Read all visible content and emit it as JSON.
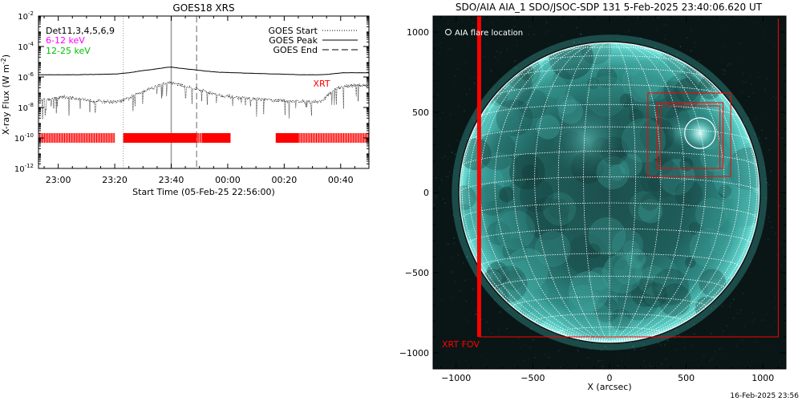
{
  "colors": {
    "background": "#ffffff",
    "axis": "#000000",
    "xrt": "#ff0000",
    "band_6_12": "#ff00ff",
    "band_12_25": "#00c000",
    "grid": "#ffffff",
    "limb": "#ffffff",
    "disk_core": "#1f5a58",
    "disk_edge": "#5fd6cf",
    "off_limb": "#0a1616"
  },
  "chart_data": [
    {
      "type": "line",
      "title": "GOES18 XRS",
      "xlabel": "Start Time (05-Feb-25 22:56:00)",
      "ylabel": "X-ray Flux (W m",
      "ylabel_sup": "-2",
      "ylabel_close": ")",
      "x_unit": "minutes after 22:56:00",
      "xlim": [
        -3,
        114
      ],
      "x_ticks": [
        {
          "value": 4,
          "label": "23:00"
        },
        {
          "value": 24,
          "label": "23:20"
        },
        {
          "value": 44,
          "label": "23:40"
        },
        {
          "value": 64,
          "label": "00:00"
        },
        {
          "value": 84,
          "label": "00:20"
        },
        {
          "value": 104,
          "label": "00:40"
        }
      ],
      "y_scale": "log",
      "ylim": [
        1e-12,
        0.01
      ],
      "y_ticks": [
        {
          "value": 1e-12,
          "base": "10",
          "exp": "-12"
        },
        {
          "value": 1e-10,
          "base": "10",
          "exp": "-10"
        },
        {
          "value": 1e-08,
          "base": "10",
          "exp": "-8"
        },
        {
          "value": 1e-06,
          "base": "10",
          "exp": "-6"
        },
        {
          "value": 0.0001,
          "base": "10",
          "exp": "-4"
        },
        {
          "value": 0.01,
          "base": "10",
          "exp": "-2"
        }
      ],
      "info_lines": [
        {
          "text": "Det11,3,4,5,6,9",
          "color": "#000000"
        },
        {
          "text": "6-12 keV",
          "color": "#ff00ff"
        },
        {
          "text": "12-25 keV",
          "color": "#00c000"
        }
      ],
      "legend_position": "top-right",
      "legend": [
        {
          "label": "GOES Start",
          "style": "dotted"
        },
        {
          "label": "GOES Peak",
          "style": "solid"
        },
        {
          "label": "GOES End",
          "style": "dashed"
        }
      ],
      "event_markers": {
        "start": 27,
        "peak": 44,
        "end": 53
      },
      "series": [
        {
          "name": "",
          "channel": "long",
          "style": "solid",
          "x": [
            -3,
            10,
            20,
            25,
            29,
            33,
            38,
            42,
            44,
            46,
            50,
            55,
            60,
            70,
            80,
            90,
            96,
            100,
            102,
            105,
            110,
            114
          ],
          "y": [
            1.4e-06,
            1.4e-06,
            1.5e-06,
            1.6e-06,
            1.9e-06,
            2.5e-06,
            3.2e-06,
            4.2e-06,
            4.5e-06,
            4e-06,
            3.3e-06,
            2.6e-06,
            2.1e-06,
            1.8e-06,
            1.6e-06,
            1.4e-06,
            1.4e-06,
            1.5e-06,
            1.7e-06,
            1.9e-06,
            1.9e-06,
            1.9e-06
          ]
        },
        {
          "name": "",
          "channel": "short",
          "style": "dotted",
          "x": [
            -3,
            2,
            6,
            10,
            15,
            20,
            25,
            29,
            33,
            38,
            42,
            44,
            46,
            50,
            55,
            60,
            65,
            70,
            75,
            80,
            85,
            90,
            95,
            97,
            99,
            101,
            103,
            106,
            110,
            114
          ],
          "y": [
            3e-08,
            3.8e-08,
            5e-08,
            4.2e-08,
            3e-08,
            2.5e-08,
            2.3e-08,
            4e-08,
            1e-07,
            2.2e-07,
            3.8e-07,
            4.3e-07,
            3.5e-07,
            2.3e-07,
            1.3e-07,
            7e-08,
            5e-08,
            4e-08,
            3.5e-08,
            3e-08,
            2.7e-08,
            2.6e-08,
            2.4e-08,
            2.5e-08,
            5e-08,
            1.2e-07,
            2e-07,
            2.6e-07,
            2.8e-07,
            2.9e-07
          ]
        }
      ],
      "xrt_label": "XRT",
      "xrt_coverage_flux": 1e-10,
      "xrt_coverage_intervals": [
        [
          -3,
          24
        ],
        [
          47,
          63
        ],
        [
          87,
          114
        ]
      ],
      "xrt_interval_ends": [
        [
          27,
          53
        ],
        [
          55,
          65
        ],
        [
          81,
          89
        ]
      ]
    },
    {
      "type": "table",
      "title": "SDO/AIA AIA_1 SDO/JSOC-SDP 131  5-Feb-2025 23:40:06.620 UT",
      "xlabel": "X (arcsec)",
      "ylabel": "",
      "xlim": [
        -1150,
        1150
      ],
      "ylim": [
        -1100,
        1100
      ],
      "x_ticks": [
        {
          "value": -1000,
          "label": "−1000"
        },
        {
          "value": -500,
          "label": "−500"
        },
        {
          "value": 0,
          "label": "0"
        },
        {
          "value": 500,
          "label": "500"
        },
        {
          "value": 1000,
          "label": "1000"
        }
      ],
      "y_ticks": [
        {
          "value": 1000,
          "label": "1000"
        },
        {
          "value": 500,
          "label": "500"
        },
        {
          "value": 0,
          "label": "0"
        },
        {
          "value": -500,
          "label": "−500"
        },
        {
          "value": -1000,
          "label": "−1000"
        }
      ],
      "solar_radius_arcsec": 976,
      "grid_spacing_deg": 10,
      "b0_deg": -6,
      "flare_label": "AIA flare location",
      "flare_location": {
        "x": 590,
        "y": 370,
        "r": 100
      },
      "xrt_fov_label": "XRT FOV",
      "xrt_fov": {
        "x1": -850,
        "x2": 1100,
        "y1": -900,
        "y2": 1100
      },
      "xrt_boxes": [
        {
          "x1": 250,
          "y1": 100,
          "x2": 790,
          "y2": 620
        },
        {
          "x1": 310,
          "y1": 150,
          "x2": 740,
          "y2": 560
        },
        {
          "x1": 330,
          "y1": 150,
          "x2": 720,
          "y2": 540
        }
      ]
    }
  ],
  "footer": {
    "timestamp": "16-Feb-2025 23:56"
  }
}
